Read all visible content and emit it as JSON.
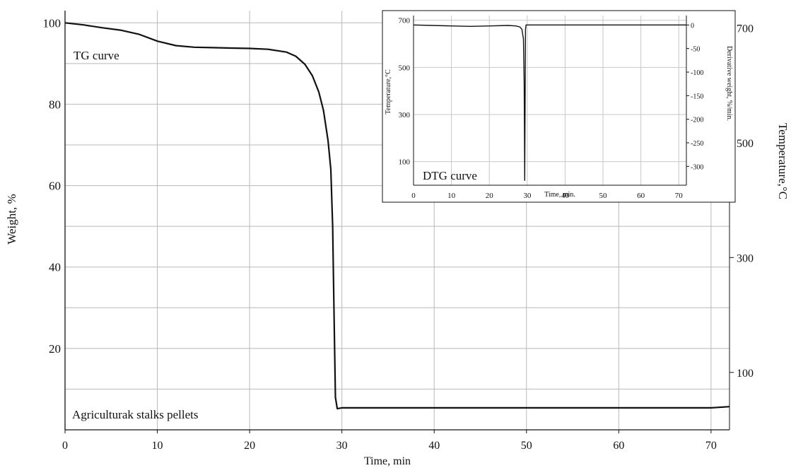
{
  "chart_data": [
    {
      "type": "line",
      "xlabel": "Time, min",
      "ylabel": "Weight, %",
      "y2label": "Temperature,°C",
      "xlim": [
        0,
        72
      ],
      "ylim": [
        0,
        103
      ],
      "y2lim": [
        0,
        730
      ],
      "x_ticks": [
        "0",
        "10",
        "20",
        "30",
        "40",
        "50",
        "60",
        "70"
      ],
      "y_ticks": [
        "20",
        "40",
        "60",
        "80",
        "100"
      ],
      "y2_ticks": [
        "100",
        "300",
        "500",
        "700"
      ],
      "grid": true,
      "annotations": [
        "TG curve",
        "Agriculturak stalks pellets"
      ],
      "series": [
        {
          "x": [
            0,
            2,
            4,
            6,
            8,
            10,
            12,
            14,
            16,
            18,
            20,
            22,
            24,
            25,
            26,
            26.8,
            27.5,
            28,
            28.5,
            28.8,
            29.0,
            29.15,
            29.3,
            29.5,
            30,
            40,
            50,
            60,
            70,
            72
          ],
          "y": [
            100,
            99.5,
            98.8,
            98.2,
            97.2,
            95.5,
            94.4,
            94.0,
            93.9,
            93.8,
            93.7,
            93.5,
            92.8,
            91.8,
            89.8,
            87.0,
            83.0,
            78.5,
            71.0,
            64.0,
            50.0,
            28.0,
            8.0,
            5.2,
            5.4,
            5.4,
            5.4,
            5.4,
            5.4,
            5.7
          ]
        }
      ],
      "style": {
        "line_color": "#111111",
        "grid_color": "#b8b8b8",
        "background": "#ffffff"
      }
    },
    {
      "type": "line",
      "title": "DTG curve",
      "xlabel": "Time, min.",
      "ylabel": "Temperature,°C",
      "y2label": "Derivative weight, %/min.",
      "xlim": [
        0,
        72
      ],
      "ylim": [
        0,
        720
      ],
      "y2lim": [
        -340,
        5
      ],
      "x_ticks": [
        "0",
        "10",
        "20",
        "30",
        "40",
        "50",
        "60",
        "70"
      ],
      "y_ticks": [
        "100",
        "300",
        "500",
        "700"
      ],
      "y2_ticks": [
        "0",
        "-50",
        "-100",
        "-150",
        "-200",
        "-250",
        "-300"
      ],
      "grid": true,
      "series": [
        {
          "x": [
            0,
            5,
            10,
            15,
            20,
            25,
            27,
            28,
            28.6,
            29.0,
            29.2,
            29.35,
            29.45,
            29.55,
            29.7,
            30,
            40,
            50,
            60,
            70,
            72
          ],
          "y": [
            0,
            -1,
            -2,
            -3,
            -2,
            -1,
            -2,
            -4,
            -9,
            -30,
            -120,
            -330,
            -150,
            -10,
            0,
            0,
            0,
            0,
            0,
            0,
            0
          ]
        }
      ]
    }
  ]
}
